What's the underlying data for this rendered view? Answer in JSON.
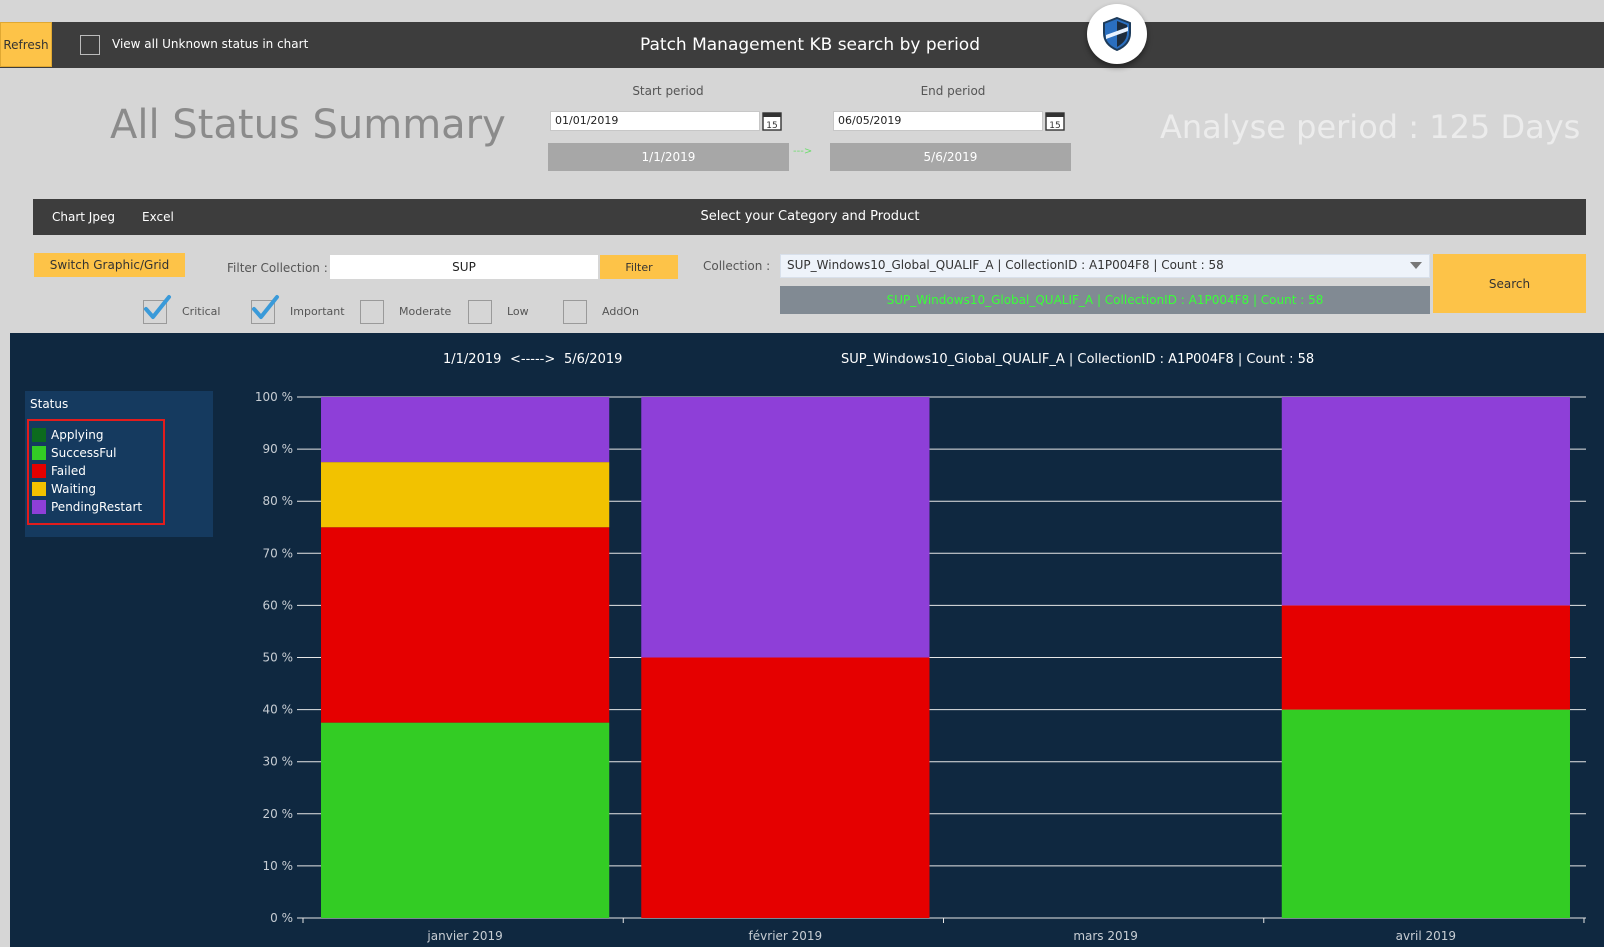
{
  "header": {
    "refresh_label": "Refresh",
    "unknown_label": "View all Unknown status in chart",
    "title": "Patch Management KB search by period"
  },
  "summary_title": "All Status Summary",
  "period": {
    "start_label": "Start period",
    "end_label": "End period",
    "start_input": "01/01/2019",
    "end_input": "06/05/2019",
    "start_display": "1/1/2019",
    "end_display": "5/6/2019",
    "arrow": "--->",
    "analyse": "Analyse period : 125 Days"
  },
  "toolbar": {
    "chart_jpeg": "Chart Jpeg",
    "excel": "Excel",
    "title": "Select your Category and Product"
  },
  "filters": {
    "switch_label": "Switch Graphic/Grid",
    "filter_collection_label": "Filter Collection :",
    "filter_value": "SUP",
    "filter_button": "Filter",
    "collection_label": "Collection :",
    "collection_value": "SUP_Windows10_Global_QUALIF_A  | CollectionID : A1P004F8 | Count : 58",
    "collection_selected": "SUP_Windows10_Global_QUALIF_A  | CollectionID : A1P004F8 | Count : 58",
    "search_button": "Search",
    "checkboxes": [
      {
        "label": "Critical",
        "checked": true
      },
      {
        "label": "Important",
        "checked": true
      },
      {
        "label": "Moderate",
        "checked": false
      },
      {
        "label": "Low",
        "checked": false
      },
      {
        "label": "AddOn",
        "checked": false
      }
    ]
  },
  "chart_header": {
    "start": "1/1/2019",
    "arrow": "<----->",
    "end": "5/6/2019",
    "collection": "SUP_Windows10_Global_QUALIF_A  | CollectionID : A1P004F8 | Count : 58"
  },
  "legend": {
    "title": "Status",
    "items": [
      {
        "label": "Applying",
        "color": "#0c6b1e"
      },
      {
        "label": "SuccessFul",
        "color": "#33cc24"
      },
      {
        "label": "Failed",
        "color": "#e50000"
      },
      {
        "label": "Waiting",
        "color": "#f2c200"
      },
      {
        "label": "PendingRestart",
        "color": "#8e3fd8"
      }
    ]
  },
  "chart_data": {
    "type": "bar",
    "stacked": true,
    "categories": [
      "janvier 2019",
      "février 2019",
      "mars 2019",
      "avril 2019"
    ],
    "ylim": [
      0,
      100
    ],
    "yticks": [
      "0 %",
      "10 %",
      "20 %",
      "30 %",
      "40 %",
      "50 %",
      "60 %",
      "70 %",
      "80 %",
      "90 %",
      "100 %"
    ],
    "grid": true,
    "legend_position": "left",
    "series": [
      {
        "name": "Applying",
        "color": "#0c6b1e",
        "values": [
          0,
          0,
          0,
          0
        ]
      },
      {
        "name": "SuccessFul",
        "color": "#33cc24",
        "values": [
          37.5,
          0,
          0,
          40
        ]
      },
      {
        "name": "Failed",
        "color": "#e50000",
        "values": [
          37.5,
          50,
          0,
          20
        ]
      },
      {
        "name": "Waiting",
        "color": "#f2c200",
        "values": [
          12.5,
          0,
          0,
          0
        ]
      },
      {
        "name": "PendingRestart",
        "color": "#8e3fd8",
        "values": [
          12.5,
          50,
          0,
          40
        ]
      }
    ]
  }
}
